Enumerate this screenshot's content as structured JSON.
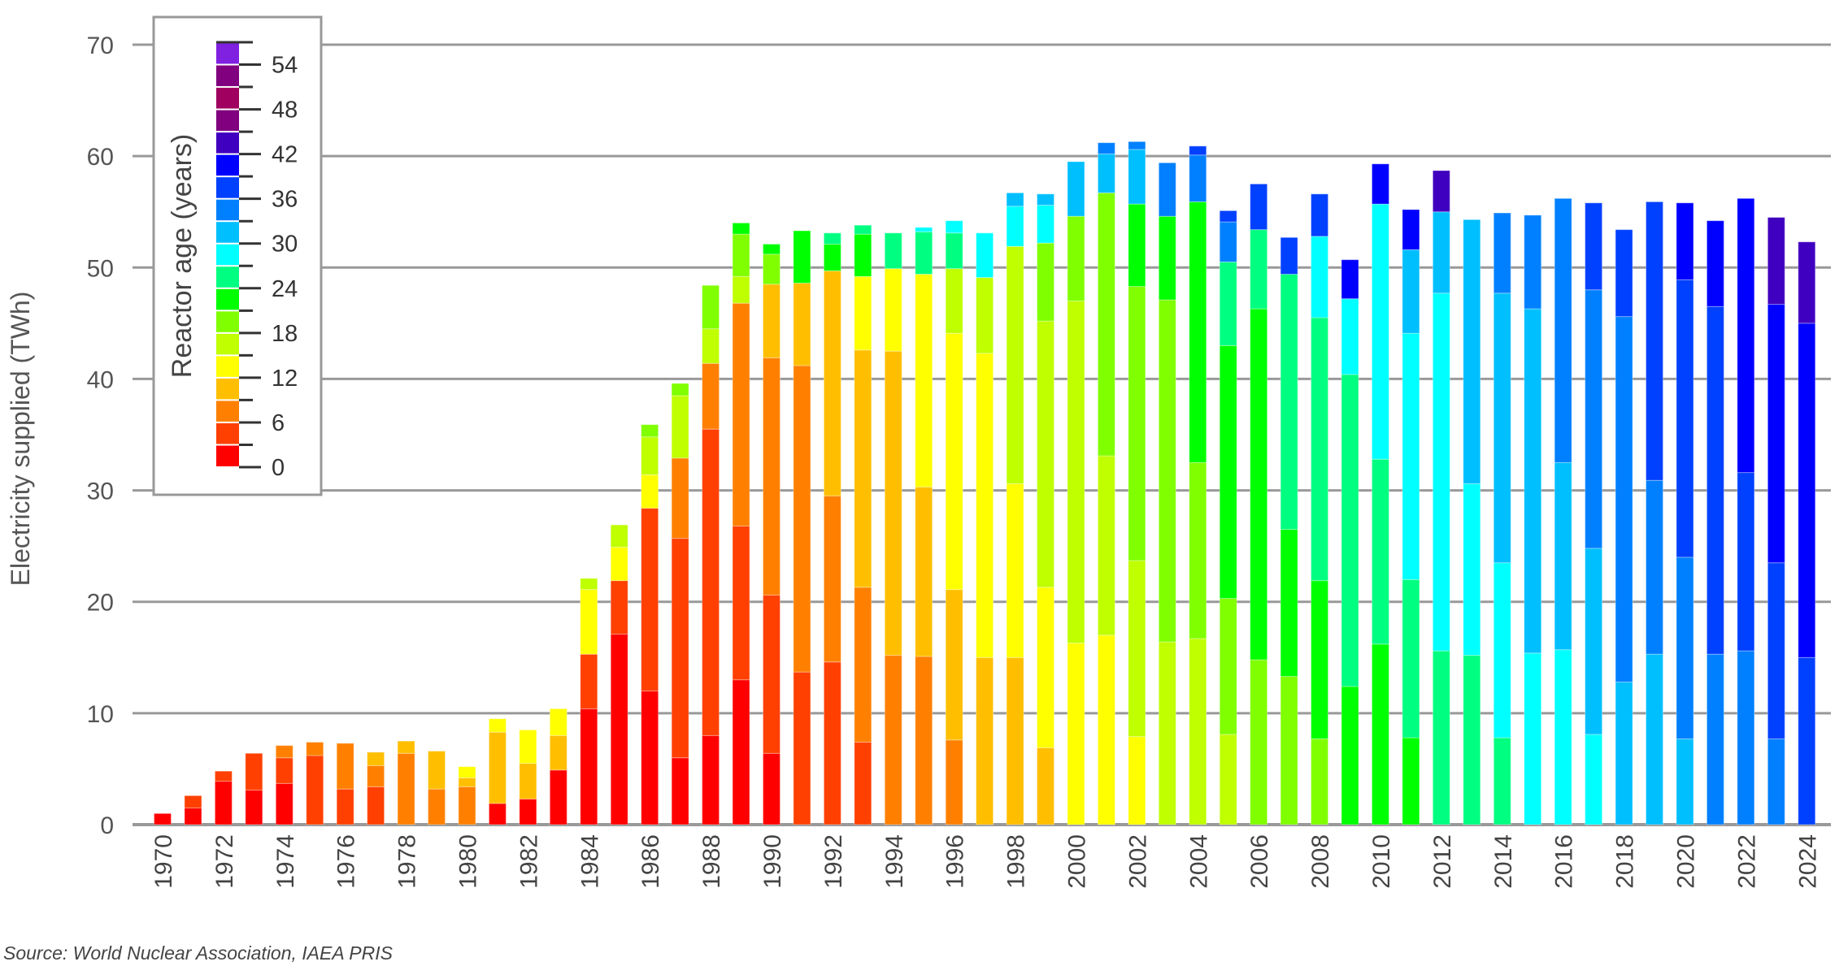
{
  "chart_data": {
    "type": "bar",
    "stacked": true,
    "title": "",
    "xlabel": "",
    "ylabel": "Electricity supplied (TWh)",
    "ylim": [
      0,
      70
    ],
    "yticks": [
      0,
      10,
      20,
      30,
      40,
      50,
      60,
      70
    ],
    "grid": true,
    "legend": {
      "title": "Reactor age (years)",
      "position": "upper-left",
      "ticks": [
        0,
        6,
        12,
        18,
        24,
        30,
        36,
        42,
        48,
        54
      ],
      "bins": [
        "0-3",
        "3-6",
        "6-9",
        "9-12",
        "12-15",
        "15-18",
        "18-21",
        "21-24",
        "24-27",
        "27-30",
        "30-33",
        "33-36",
        "36-39",
        "39-42",
        "42-45",
        "45-48",
        "48-51",
        "51-54",
        "54-57"
      ],
      "colors": [
        "#ff0000",
        "#ff4000",
        "#ff8000",
        "#ffbf00",
        "#ffff00",
        "#bfff00",
        "#80ff00",
        "#00ff00",
        "#00ff80",
        "#00ffff",
        "#00bfff",
        "#0080ff",
        "#0040ff",
        "#0000ff",
        "#4000bf",
        "#800080",
        "#a00060",
        "#800080",
        "#8020e0"
      ]
    },
    "categories": [
      1970,
      1971,
      1972,
      1973,
      1974,
      1975,
      1976,
      1977,
      1978,
      1979,
      1980,
      1981,
      1982,
      1983,
      1984,
      1985,
      1986,
      1987,
      1988,
      1989,
      1990,
      1991,
      1992,
      1993,
      1994,
      1995,
      1996,
      1997,
      1998,
      1999,
      2000,
      2001,
      2002,
      2003,
      2004,
      2005,
      2006,
      2007,
      2008,
      2009,
      2010,
      2011,
      2012,
      2013,
      2014,
      2015,
      2016,
      2017,
      2018,
      2019,
      2020,
      2021,
      2022,
      2023,
      2024
    ],
    "xtick_labels": [
      "1970",
      "1972",
      "1974",
      "1976",
      "1978",
      "1980",
      "1982",
      "1984",
      "1986",
      "1988",
      "1990",
      "1992",
      "1994",
      "1996",
      "1998",
      "2000",
      "2002",
      "2004",
      "2006",
      "2008",
      "2010",
      "2012",
      "2014",
      "2016",
      "2018",
      "2020",
      "2022",
      "2024"
    ],
    "stacks": [
      [
        [
          0,
          1.0
        ]
      ],
      [
        [
          0,
          1.5
        ],
        [
          1,
          1.1
        ]
      ],
      [
        [
          0,
          3.9
        ],
        [
          1,
          0.9
        ]
      ],
      [
        [
          0,
          3.1
        ],
        [
          1,
          3.3
        ]
      ],
      [
        [
          0,
          3.7
        ],
        [
          1,
          2.3
        ],
        [
          2,
          1.1
        ]
      ],
      [
        [
          1,
          6.2
        ],
        [
          2,
          1.2
        ]
      ],
      [
        [
          1,
          3.2
        ],
        [
          2,
          4.1
        ]
      ],
      [
        [
          1,
          3.4
        ],
        [
          2,
          1.9
        ],
        [
          3,
          1.2
        ]
      ],
      [
        [
          2,
          6.4
        ],
        [
          3,
          1.1
        ]
      ],
      [
        [
          2,
          3.2
        ],
        [
          3,
          3.4
        ]
      ],
      [
        [
          2,
          3.4
        ],
        [
          3,
          0.8
        ],
        [
          4,
          1.0
        ]
      ],
      [
        [
          0,
          1.9
        ],
        [
          3,
          6.4
        ],
        [
          4,
          1.2
        ]
      ],
      [
        [
          0,
          2.3
        ],
        [
          3,
          3.2
        ],
        [
          4,
          3.0
        ]
      ],
      [
        [
          0,
          4.9
        ],
        [
          3,
          3.1
        ],
        [
          4,
          2.4
        ]
      ],
      [
        [
          0,
          10.4
        ],
        [
          1,
          4.9
        ],
        [
          4,
          5.8
        ],
        [
          5,
          1.0
        ]
      ],
      [
        [
          0,
          17.1
        ],
        [
          1,
          4.8
        ],
        [
          4,
          3.0
        ],
        [
          5,
          2.0
        ]
      ],
      [
        [
          0,
          12.0
        ],
        [
          1,
          16.4
        ],
        [
          4,
          3.0
        ],
        [
          5,
          3.4
        ],
        [
          6,
          1.1
        ]
      ],
      [
        [
          0,
          6.0
        ],
        [
          1,
          19.7
        ],
        [
          2,
          7.2
        ],
        [
          5,
          5.6
        ],
        [
          6,
          1.1
        ]
      ],
      [
        [
          0,
          8.0
        ],
        [
          1,
          27.5
        ],
        [
          2,
          5.9
        ],
        [
          5,
          3.1
        ],
        [
          6,
          3.9
        ]
      ],
      [
        [
          0,
          13.0
        ],
        [
          1,
          13.8
        ],
        [
          2,
          20.0
        ],
        [
          5,
          2.4
        ],
        [
          6,
          3.8
        ],
        [
          7,
          1.0
        ]
      ],
      [
        [
          0,
          6.4
        ],
        [
          1,
          14.2
        ],
        [
          2,
          21.3
        ],
        [
          3,
          6.6
        ],
        [
          6,
          2.7
        ],
        [
          7,
          0.9
        ]
      ],
      [
        [
          1,
          13.7
        ],
        [
          2,
          27.5
        ],
        [
          3,
          7.4
        ],
        [
          7,
          4.7
        ]
      ],
      [
        [
          1,
          14.6
        ],
        [
          2,
          14.9
        ],
        [
          3,
          20.2
        ],
        [
          7,
          2.4
        ],
        [
          8,
          1.0
        ]
      ],
      [
        [
          1,
          7.4
        ],
        [
          2,
          13.9
        ],
        [
          3,
          21.3
        ],
        [
          4,
          6.6
        ],
        [
          7,
          3.8
        ],
        [
          8,
          0.8
        ]
      ],
      [
        [
          2,
          15.2
        ],
        [
          3,
          27.3
        ],
        [
          4,
          7.4
        ],
        [
          8,
          3.2
        ]
      ],
      [
        [
          2,
          15.1
        ],
        [
          3,
          15.2
        ],
        [
          4,
          19.1
        ],
        [
          8,
          3.8
        ],
        [
          9,
          0.4
        ]
      ],
      [
        [
          2,
          7.6
        ],
        [
          3,
          13.5
        ],
        [
          4,
          23.0
        ],
        [
          5,
          5.8
        ],
        [
          8,
          3.2
        ],
        [
          9,
          1.1
        ]
      ],
      [
        [
          3,
          15.0
        ],
        [
          4,
          27.3
        ],
        [
          5,
          6.8
        ],
        [
          9,
          4.0
        ]
      ],
      [
        [
          3,
          15.0
        ],
        [
          4,
          15.6
        ],
        [
          5,
          21.3
        ],
        [
          9,
          3.6
        ],
        [
          10,
          1.2
        ]
      ],
      [
        [
          3,
          6.9
        ],
        [
          4,
          14.4
        ],
        [
          5,
          23.9
        ],
        [
          6,
          7.0
        ],
        [
          9,
          3.4
        ],
        [
          10,
          1.0
        ]
      ],
      [
        [
          4,
          16.3
        ],
        [
          5,
          30.7
        ],
        [
          6,
          7.6
        ],
        [
          10,
          4.9
        ]
      ],
      [
        [
          4,
          17.0
        ],
        [
          5,
          16.1
        ],
        [
          6,
          23.6
        ],
        [
          10,
          3.5
        ],
        [
          11,
          1.0
        ]
      ],
      [
        [
          4,
          7.9
        ],
        [
          5,
          15.8
        ],
        [
          6,
          24.6
        ],
        [
          7,
          7.4
        ],
        [
          10,
          4.9
        ],
        [
          11,
          0.7
        ]
      ],
      [
        [
          5,
          16.4
        ],
        [
          6,
          30.7
        ],
        [
          7,
          7.5
        ],
        [
          11,
          4.8
        ]
      ],
      [
        [
          5,
          16.7
        ],
        [
          6,
          15.8
        ],
        [
          7,
          23.4
        ],
        [
          11,
          4.2
        ],
        [
          12,
          0.8
        ]
      ],
      [
        [
          5,
          8.1
        ],
        [
          6,
          12.2
        ],
        [
          7,
          22.7
        ],
        [
          8,
          7.5
        ],
        [
          11,
          3.6
        ],
        [
          12,
          1.0
        ]
      ],
      [
        [
          6,
          14.8
        ],
        [
          7,
          31.5
        ],
        [
          8,
          7.1
        ],
        [
          12,
          4.1
        ]
      ],
      [
        [
          6,
          13.3
        ],
        [
          7,
          13.2
        ],
        [
          8,
          22.9
        ],
        [
          12,
          3.3
        ]
      ],
      [
        [
          6,
          7.7
        ],
        [
          7,
          14.2
        ],
        [
          8,
          23.6
        ],
        [
          9,
          7.3
        ],
        [
          12,
          3.8
        ]
      ],
      [
        [
          7,
          12.4
        ],
        [
          8,
          28.0
        ],
        [
          9,
          6.8
        ],
        [
          13,
          3.5
        ]
      ],
      [
        [
          7,
          16.2
        ],
        [
          8,
          16.6
        ],
        [
          9,
          22.9
        ],
        [
          13,
          3.6
        ]
      ],
      [
        [
          7,
          7.8
        ],
        [
          8,
          14.2
        ],
        [
          9,
          22.1
        ],
        [
          10,
          7.5
        ],
        [
          13,
          3.6
        ]
      ],
      [
        [
          8,
          15.6
        ],
        [
          9,
          32.1
        ],
        [
          10,
          7.3
        ],
        [
          14,
          3.7
        ]
      ],
      [
        [
          8,
          15.2
        ],
        [
          9,
          15.4
        ],
        [
          10,
          23.7
        ]
      ],
      [
        [
          8,
          7.8
        ],
        [
          9,
          15.7
        ],
        [
          10,
          24.2
        ],
        [
          11,
          7.2
        ]
      ],
      [
        [
          9,
          15.4
        ],
        [
          10,
          30.9
        ],
        [
          11,
          8.4
        ]
      ],
      [
        [
          9,
          15.7
        ],
        [
          10,
          16.8
        ],
        [
          11,
          23.7
        ]
      ],
      [
        [
          9,
          8.1
        ],
        [
          10,
          16.7
        ],
        [
          11,
          23.2
        ],
        [
          12,
          7.8
        ]
      ],
      [
        [
          10,
          12.8
        ],
        [
          11,
          32.8
        ],
        [
          12,
          7.8
        ]
      ],
      [
        [
          10,
          15.3
        ],
        [
          11,
          15.6
        ],
        [
          12,
          25.0
        ]
      ],
      [
        [
          10,
          7.7
        ],
        [
          11,
          16.3
        ],
        [
          12,
          24.9
        ],
        [
          13,
          6.9
        ]
      ],
      [
        [
          11,
          15.3
        ],
        [
          12,
          31.2
        ],
        [
          13,
          7.7
        ]
      ],
      [
        [
          11,
          15.6
        ],
        [
          12,
          16.0
        ],
        [
          13,
          24.6
        ]
      ],
      [
        [
          11,
          7.7
        ],
        [
          12,
          15.8
        ],
        [
          13,
          23.2
        ],
        [
          14,
          7.8
        ]
      ],
      [
        [
          12,
          15.0
        ],
        [
          13,
          30.0
        ],
        [
          14,
          7.3
        ]
      ]
    ]
  },
  "source": "Source: World Nuclear Association, IAEA PRIS"
}
